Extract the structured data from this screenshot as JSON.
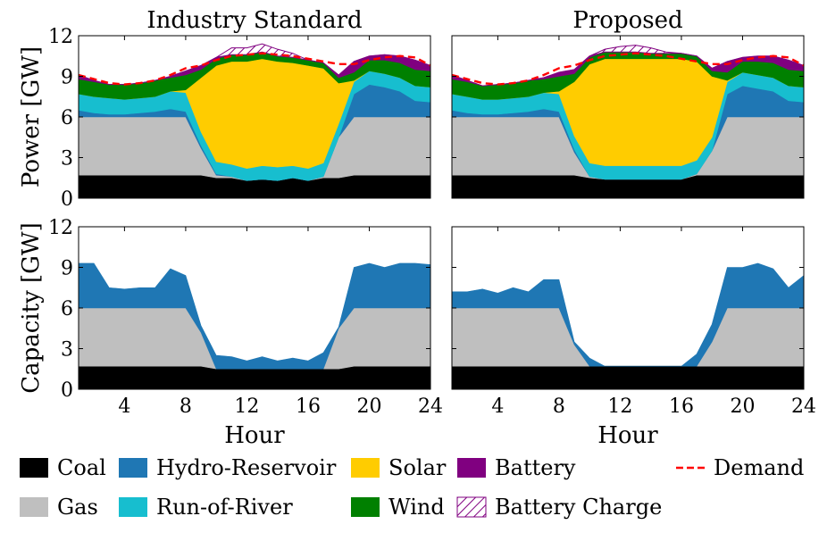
{
  "chart_data": {
    "type": "area",
    "x": [
      1,
      2,
      3,
      4,
      5,
      6,
      7,
      8,
      9,
      10,
      11,
      12,
      13,
      14,
      15,
      16,
      17,
      18,
      19,
      20,
      21,
      22,
      23,
      24
    ],
    "xticks": [
      4,
      8,
      12,
      16,
      20,
      24
    ],
    "yticks": [
      0,
      3,
      6,
      9,
      12
    ],
    "xlim": [
      1,
      24
    ],
    "ylim": [
      0,
      12
    ],
    "xlabel": "Hour",
    "ylabel_power": "Power [GW]",
    "ylabel_capacity": "Capacity [GW]",
    "colors": {
      "Coal": "#000000",
      "Gas": "#bfbfbf",
      "Hydro-Reservoir": "#1f77b4",
      "Run-of-River": "#17becf",
      "Solar": "#ffcc00",
      "Wind": "#008000",
      "Battery": "#800080",
      "Battery Charge": "#800080",
      "Demand": "#ff0000"
    },
    "legend": [
      {
        "name": "Coal",
        "style": "fill"
      },
      {
        "name": "Hydro-Reservoir",
        "style": "fill"
      },
      {
        "name": "Solar",
        "style": "fill"
      },
      {
        "name": "Battery",
        "style": "fill"
      },
      {
        "name": "Demand",
        "style": "dash"
      },
      {
        "name": "Gas",
        "style": "fill"
      },
      {
        "name": "Run-of-River",
        "style": "fill"
      },
      {
        "name": "Wind",
        "style": "fill"
      },
      {
        "name": "Battery Charge",
        "style": "hatch"
      }
    ],
    "panels": [
      {
        "id": "power-industry",
        "title": "Industry Standard",
        "kind": "power",
        "series": [
          {
            "name": "Coal",
            "values": [
              1.7,
              1.7,
              1.7,
              1.7,
              1.7,
              1.7,
              1.7,
              1.7,
              1.7,
              1.5,
              1.5,
              1.3,
              1.4,
              1.3,
              1.5,
              1.3,
              1.5,
              1.5,
              1.7,
              1.7,
              1.7,
              1.7,
              1.7,
              1.7
            ]
          },
          {
            "name": "Gas",
            "values": [
              4.3,
              4.3,
              4.3,
              4.3,
              4.3,
              4.3,
              4.3,
              4.3,
              2.0,
              0.2,
              0.1,
              0.0,
              0.0,
              0.0,
              0.0,
              0.0,
              0.1,
              3.0,
              4.3,
              4.3,
              4.3,
              4.3,
              4.3,
              4.3
            ]
          },
          {
            "name": "Hydro-Reservoir",
            "values": [
              0.5,
              0.3,
              0.2,
              0.2,
              0.3,
              0.4,
              0.6,
              0.4,
              0.2,
              0.1,
              0.0,
              0.0,
              0.0,
              0.0,
              0.0,
              0.0,
              0.0,
              0.0,
              1.7,
              2.4,
              2.2,
              1.9,
              1.2,
              1.1
            ]
          },
          {
            "name": "Run-of-River",
            "values": [
              1.2,
              1.2,
              1.2,
              1.1,
              1.1,
              1.1,
              1.3,
              1.4,
              1.0,
              0.9,
              0.9,
              0.9,
              1.0,
              1.0,
              0.9,
              0.9,
              1.0,
              1.0,
              0.9,
              1.0,
              1.0,
              1.0,
              1.1,
              1.1
            ]
          },
          {
            "name": "Solar",
            "values": [
              0.0,
              0.0,
              0.0,
              0.0,
              0.0,
              0.0,
              0.0,
              0.2,
              4.0,
              7.1,
              7.6,
              7.9,
              7.9,
              7.8,
              7.6,
              7.6,
              7.0,
              3.0,
              0.1,
              0.0,
              0.0,
              0.0,
              0.0,
              0.0
            ]
          },
          {
            "name": "Wind",
            "values": [
              1.1,
              1.1,
              1.0,
              1.1,
              1.1,
              1.2,
              1.0,
              1.1,
              0.6,
              0.5,
              0.5,
              0.5,
              0.5,
              0.4,
              0.4,
              0.4,
              0.4,
              0.4,
              0.6,
              0.8,
              1.0,
              1.1,
              1.2,
              1.2
            ]
          },
          {
            "name": "Battery",
            "values": [
              0.3,
              0.1,
              0.0,
              0.0,
              0.0,
              0.0,
              0.1,
              0.3,
              0.3,
              0.1,
              0.0,
              0.0,
              0.0,
              0.0,
              0.0,
              0.0,
              0.0,
              0.2,
              0.8,
              0.3,
              0.4,
              0.5,
              0.7,
              0.4
            ]
          },
          {
            "name": "Battery Charge",
            "values": [
              0,
              0,
              0,
              0,
              0,
              0,
              0,
              0,
              0,
              0,
              0.5,
              0.5,
              0.6,
              0.5,
              0.3,
              0,
              0,
              0,
              0,
              0,
              0,
              0,
              0,
              0
            ]
          }
        ],
        "demand": [
          9.1,
          8.8,
          8.5,
          8.4,
          8.5,
          8.7,
          9.1,
          9.6,
          9.8,
          10.2,
          10.5,
          10.6,
          10.7,
          10.6,
          10.5,
          10.3,
          10.1,
          9.9,
          9.9,
          10.2,
          10.4,
          10.5,
          10.4,
          9.8
        ]
      },
      {
        "id": "power-proposed",
        "title": "Proposed",
        "kind": "power",
        "series": [
          {
            "name": "Coal",
            "values": [
              1.7,
              1.7,
              1.7,
              1.7,
              1.7,
              1.7,
              1.7,
              1.7,
              1.7,
              1.5,
              1.4,
              1.4,
              1.4,
              1.4,
              1.4,
              1.4,
              1.7,
              1.7,
              1.7,
              1.7,
              1.7,
              1.7,
              1.7,
              1.7
            ]
          },
          {
            "name": "Gas",
            "values": [
              4.3,
              4.3,
              4.3,
              4.3,
              4.3,
              4.3,
              4.3,
              4.3,
              1.7,
              0.1,
              0.0,
              0.0,
              0.0,
              0.0,
              0.0,
              0.0,
              0.1,
              1.8,
              4.3,
              4.3,
              4.3,
              4.3,
              4.3,
              4.3
            ]
          },
          {
            "name": "Hydro-Reservoir",
            "values": [
              0.5,
              0.3,
              0.2,
              0.2,
              0.3,
              0.4,
              0.6,
              0.4,
              0.2,
              0.0,
              0.0,
              0.0,
              0.0,
              0.0,
              0.0,
              0.0,
              0.0,
              0.0,
              1.7,
              2.3,
              2.1,
              1.9,
              1.2,
              1.1
            ]
          },
          {
            "name": "Run-of-River",
            "values": [
              1.2,
              1.2,
              1.1,
              1.1,
              1.1,
              1.1,
              1.2,
              1.3,
              1.0,
              1.0,
              1.0,
              1.0,
              1.0,
              1.0,
              1.0,
              1.0,
              1.0,
              1.0,
              0.9,
              1.0,
              1.0,
              1.0,
              1.1,
              1.1
            ]
          },
          {
            "name": "Solar",
            "values": [
              0.0,
              0.0,
              0.0,
              0.0,
              0.0,
              0.0,
              0.0,
              0.2,
              4.0,
              7.3,
              7.9,
              7.9,
              7.9,
              7.9,
              7.9,
              7.9,
              7.3,
              4.5,
              0.1,
              0.0,
              0.0,
              0.0,
              0.0,
              0.0
            ]
          },
          {
            "name": "Wind",
            "values": [
              1.1,
              1.1,
              1.0,
              1.1,
              1.1,
              1.2,
              1.0,
              1.1,
              0.6,
              0.5,
              0.5,
              0.5,
              0.5,
              0.4,
              0.4,
              0.4,
              0.4,
              0.4,
              0.6,
              0.8,
              1.0,
              1.1,
              1.2,
              1.2
            ]
          },
          {
            "name": "Battery",
            "values": [
              0.3,
              0.1,
              0.0,
              0.0,
              0.0,
              0.0,
              0.1,
              0.3,
              0.3,
              0.1,
              0.0,
              0.0,
              0.0,
              0.0,
              0.0,
              0.0,
              0.0,
              0.2,
              0.8,
              0.3,
              0.4,
              0.5,
              0.7,
              0.4
            ]
          },
          {
            "name": "Battery Charge",
            "values": [
              0,
              0,
              0,
              0,
              0,
              0,
              0,
              0,
              0,
              0,
              0.2,
              0.4,
              0.5,
              0.4,
              0.1,
              0,
              0,
              0,
              0,
              0,
              0,
              0,
              0,
              0
            ]
          }
        ],
        "demand": [
          9.1,
          8.8,
          8.5,
          8.4,
          8.5,
          8.7,
          9.1,
          9.6,
          9.8,
          10.2,
          10.5,
          10.6,
          10.7,
          10.6,
          10.5,
          10.3,
          10.1,
          9.9,
          9.9,
          10.2,
          10.4,
          10.5,
          10.4,
          9.8
        ]
      },
      {
        "id": "capacity-industry",
        "kind": "capacity",
        "series": [
          {
            "name": "Coal",
            "values": [
              1.7,
              1.7,
              1.7,
              1.7,
              1.7,
              1.7,
              1.7,
              1.7,
              1.7,
              1.5,
              1.5,
              1.5,
              1.5,
              1.5,
              1.5,
              1.5,
              1.5,
              1.5,
              1.7,
              1.7,
              1.7,
              1.7,
              1.7,
              1.7
            ]
          },
          {
            "name": "Gas",
            "values": [
              4.3,
              4.3,
              4.3,
              4.3,
              4.3,
              4.3,
              4.3,
              4.3,
              2.5,
              0.0,
              0.0,
              0.0,
              0.0,
              0.0,
              0.0,
              0.0,
              0.0,
              3.0,
              4.3,
              4.3,
              4.3,
              4.3,
              4.3,
              4.3
            ]
          },
          {
            "name": "Hydro-Reservoir",
            "values": [
              3.3,
              3.3,
              1.5,
              1.4,
              1.5,
              1.5,
              2.9,
              2.4,
              0.5,
              1.0,
              0.9,
              0.6,
              0.9,
              0.6,
              0.8,
              0.6,
              1.2,
              0.1,
              3.0,
              3.3,
              3.0,
              3.3,
              3.3,
              3.2
            ]
          }
        ]
      },
      {
        "id": "capacity-proposed",
        "kind": "capacity",
        "series": [
          {
            "name": "Coal",
            "values": [
              1.7,
              1.7,
              1.7,
              1.7,
              1.7,
              1.7,
              1.7,
              1.7,
              1.7,
              1.7,
              1.7,
              1.7,
              1.7,
              1.7,
              1.7,
              1.7,
              1.7,
              1.7,
              1.7,
              1.7,
              1.7,
              1.7,
              1.7,
              1.7
            ]
          },
          {
            "name": "Gas",
            "values": [
              4.3,
              4.3,
              4.3,
              4.3,
              4.3,
              4.3,
              4.3,
              4.3,
              1.6,
              0.0,
              0.0,
              0.0,
              0.0,
              0.0,
              0.0,
              0.0,
              0.0,
              1.8,
              4.3,
              4.3,
              4.3,
              4.3,
              4.3,
              4.3
            ]
          },
          {
            "name": "Hydro-Reservoir",
            "values": [
              1.2,
              1.2,
              1.4,
              1.1,
              1.5,
              1.2,
              2.1,
              2.1,
              0.2,
              0.6,
              0.0,
              0.0,
              0.0,
              0.0,
              0.0,
              0.0,
              0.9,
              1.3,
              3.0,
              3.0,
              3.3,
              2.9,
              1.5,
              2.4
            ]
          }
        ]
      }
    ]
  }
}
